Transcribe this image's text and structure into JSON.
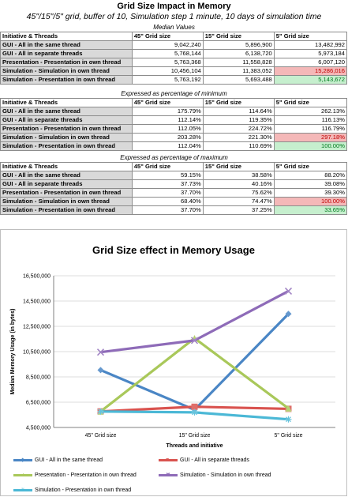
{
  "header": {
    "title": "Grid Size Impact in Memory",
    "subtitle": "45\"/15\"/5\" grid, buffer of 10, Simulation step 1 minute, 10 days of simulation time"
  },
  "columns": [
    "Initiative & Threads",
    "45\" Grid size",
    "15\" Grid size",
    "5\" Grid size"
  ],
  "tables": [
    {
      "caption": "Median Values",
      "rows": [
        {
          "label": "GUI - All in the same thread",
          "values": [
            "9,042,240",
            "5,896,900",
            "13,482,992"
          ],
          "highlight": [
            "",
            "",
            ""
          ]
        },
        {
          "label": "GUI - All in separate threads",
          "values": [
            "5,768,144",
            "6,138,720",
            "5,973,184"
          ],
          "highlight": [
            "",
            "",
            ""
          ]
        },
        {
          "label": "Presentation - Presentation in own thread",
          "values": [
            "5,763,368",
            "11,558,828",
            "6,007,120"
          ],
          "highlight": [
            "",
            "",
            ""
          ]
        },
        {
          "label": "Simulation - Simulation in own thread",
          "values": [
            "10,456,104",
            "11,383,052",
            "15,286,016"
          ],
          "highlight": [
            "",
            "",
            "red"
          ]
        },
        {
          "label": "Simulation - Presentation in own thread",
          "values": [
            "5,763,192",
            "5,693,488",
            "5,143,672"
          ],
          "highlight": [
            "",
            "",
            "green"
          ]
        }
      ]
    },
    {
      "caption": "Expressed as percentage of minimum",
      "rows": [
        {
          "label": "GUI - All in the same thread",
          "values": [
            "175.79%",
            "114.64%",
            "262.13%"
          ],
          "highlight": [
            "",
            "",
            ""
          ]
        },
        {
          "label": "GUI - All in separate threads",
          "values": [
            "112.14%",
            "119.35%",
            "116.13%"
          ],
          "highlight": [
            "",
            "",
            ""
          ]
        },
        {
          "label": "Presentation - Presentation in own thread",
          "values": [
            "112.05%",
            "224.72%",
            "116.79%"
          ],
          "highlight": [
            "",
            "",
            ""
          ]
        },
        {
          "label": "Simulation - Simulation in own thread",
          "values": [
            "203.28%",
            "221.30%",
            "297.18%"
          ],
          "highlight": [
            "",
            "",
            "red"
          ]
        },
        {
          "label": "Simulation - Presentation in own thread",
          "values": [
            "112.04%",
            "110.69%",
            "100.00%"
          ],
          "highlight": [
            "",
            "",
            "green"
          ]
        }
      ]
    },
    {
      "caption": "Expressed as percentage of maximum",
      "rows": [
        {
          "label": "GUI - All in the same thread",
          "values": [
            "59.15%",
            "38.58%",
            "88.20%"
          ],
          "highlight": [
            "",
            "",
            ""
          ]
        },
        {
          "label": "GUI - All in separate threads",
          "values": [
            "37.73%",
            "40.16%",
            "39.08%"
          ],
          "highlight": [
            "",
            "",
            ""
          ]
        },
        {
          "label": "Presentation - Presentation in own thread",
          "values": [
            "37.70%",
            "75.62%",
            "39.30%"
          ],
          "highlight": [
            "",
            "",
            ""
          ]
        },
        {
          "label": "Simulation - Simulation in own thread",
          "values": [
            "68.40%",
            "74.47%",
            "100.00%"
          ],
          "highlight": [
            "",
            "",
            "red"
          ]
        },
        {
          "label": "Simulation - Presentation in own thread",
          "values": [
            "37.70%",
            "37.25%",
            "33.65%"
          ],
          "highlight": [
            "",
            "",
            "green"
          ]
        }
      ]
    }
  ],
  "colors": {
    "highlight_red": "#f4b8b8",
    "highlight_green": "#c6efce"
  },
  "chart_data": {
    "type": "line",
    "title": "Grid Size effect in Memory Usage",
    "xlabel": "Threads and initiative",
    "ylabel": "Median Memory Usage (in bytes)",
    "categories": [
      "45\" Grid size",
      "15\" Grid size",
      "5\" Grid size"
    ],
    "ylim": [
      4500000,
      16500000
    ],
    "yticks": [
      4500000,
      6500000,
      8500000,
      10500000,
      12500000,
      14500000,
      16500000
    ],
    "ytick_labels": [
      "4,500,000",
      "6,500,000",
      "8,500,000",
      "10,500,000",
      "12,500,000",
      "14,500,000",
      "16,500,000"
    ],
    "grid": true,
    "legend_position": "bottom",
    "series": [
      {
        "name": "GUI - All in the same thread",
        "values": [
          9042240,
          5896900,
          13482992
        ],
        "color": "#4a86c5",
        "marker": "diamond"
      },
      {
        "name": "GUI - All in separate threads",
        "values": [
          5768144,
          6138720,
          5973184
        ],
        "color": "#d9534f",
        "marker": "square"
      },
      {
        "name": "Presentation - Presentation in own thread",
        "values": [
          5763368,
          11558828,
          6007120
        ],
        "color": "#a9c85a",
        "marker": "triangle"
      },
      {
        "name": "Simulation - Simulation in own thread",
        "values": [
          10456104,
          11383052,
          15286016
        ],
        "color": "#8e6bb8",
        "marker": "x"
      },
      {
        "name": "Simulation - Presentation in own thread",
        "values": [
          5763192,
          5693488,
          5143672
        ],
        "color": "#4bb8d6",
        "marker": "star"
      }
    ]
  }
}
